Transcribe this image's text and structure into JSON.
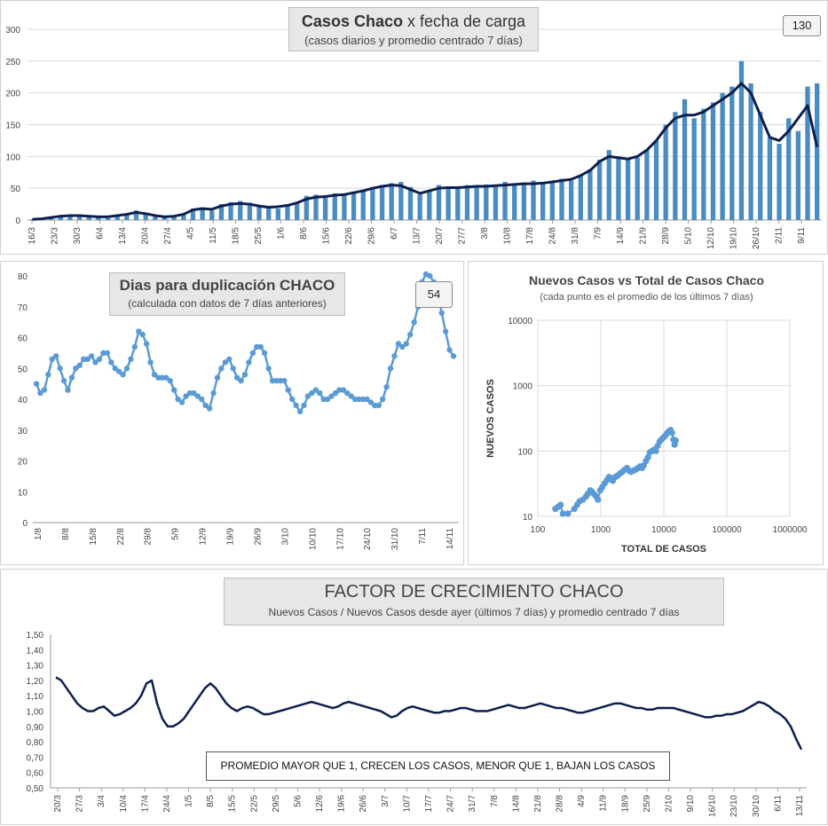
{
  "colors": {
    "navy": "#0d1f4f",
    "bar": "#4a8cc2",
    "light_line": "#5b9bd5",
    "grid": "#d9d9d9"
  },
  "chart_data": [
    {
      "id": "casos",
      "type": "bar",
      "title_bold": "Casos Chaco",
      "title_rest": "x fecha de carga",
      "subtitle": "(casos diarios y promedio  centrado 7 días)",
      "value_label": "130",
      "ylim": [
        0,
        300
      ],
      "yticks": [
        "0",
        "50",
        "100",
        "150",
        "200",
        "250",
        "300"
      ],
      "xticks": [
        "16/3",
        "23/3",
        "30/3",
        "6/4",
        "13/4",
        "20/4",
        "27/4",
        "4/5",
        "11/5",
        "18/5",
        "25/5",
        "1/6",
        "8/6",
        "15/6",
        "22/6",
        "29/6",
        "6/7",
        "13/7",
        "20/7",
        "27/7",
        "3/8",
        "10/8",
        "17/8",
        "24/8",
        "31/8",
        "7/9",
        "14/9",
        "21/9",
        "28/9",
        "5/10",
        "12/10",
        "19/10",
        "26/10",
        "2/11",
        "9/11"
      ],
      "series": [
        {
          "values": [
            1,
            2,
            5,
            8,
            8,
            8,
            5,
            4,
            3,
            6,
            9,
            15,
            10,
            5,
            4,
            6,
            8,
            18,
            20,
            15,
            25,
            28,
            30,
            27,
            22,
            20,
            18,
            24,
            28,
            38,
            40,
            35,
            42,
            40,
            45,
            48,
            52,
            55,
            58,
            60,
            52,
            40,
            45,
            55,
            52,
            50,
            55,
            52,
            56,
            55,
            60,
            55,
            58,
            62,
            57,
            60,
            65,
            62,
            70,
            80,
            95,
            110,
            100,
            95,
            98,
            110,
            125,
            150,
            170,
            190,
            160,
            175,
            185,
            200,
            210,
            250,
            215,
            170,
            130,
            120,
            160,
            140,
            210,
            215
          ]
        },
        {
          "values": [
            1,
            2,
            4,
            6,
            7,
            7,
            6,
            5,
            5,
            7,
            9,
            12,
            10,
            7,
            5,
            6,
            9,
            16,
            18,
            17,
            22,
            25,
            26,
            25,
            22,
            20,
            21,
            23,
            27,
            33,
            36,
            37,
            39,
            40,
            43,
            46,
            50,
            53,
            55,
            54,
            48,
            42,
            46,
            50,
            51,
            51,
            52,
            53,
            53,
            54,
            55,
            56,
            57,
            57,
            58,
            60,
            62,
            64,
            70,
            78,
            92,
            100,
            98,
            96,
            100,
            110,
            125,
            145,
            160,
            165,
            165,
            170,
            180,
            190,
            200,
            215,
            200,
            165,
            130,
            125,
            140,
            160,
            180,
            115
          ]
        }
      ]
    },
    {
      "id": "duplicacion",
      "type": "line",
      "title": "Dias para duplicación  CHACO",
      "subtitle": "(calculada con datos de 7 días anteriores)",
      "value_label": "54",
      "ylim": [
        0,
        80
      ],
      "yticks": [
        "0",
        "10",
        "20",
        "30",
        "40",
        "50",
        "60",
        "70",
        "80"
      ],
      "xticks": [
        "1/8",
        "8/8",
        "15/8",
        "22/8",
        "29/8",
        "5/9",
        "12/9",
        "19/9",
        "26/9",
        "3/10",
        "10/10",
        "17/10",
        "24/10",
        "31/10",
        "7/11",
        "14/11"
      ],
      "series": [
        {
          "values": [
            45,
            42,
            43,
            48,
            53,
            54,
            50,
            46,
            43,
            47,
            50,
            51,
            53,
            53,
            54,
            52,
            53,
            55,
            55,
            52,
            50,
            49,
            48,
            50,
            53,
            57,
            62,
            61,
            58,
            52,
            48,
            47,
            47,
            47,
            46,
            43,
            40,
            39,
            41,
            42,
            42,
            41,
            40,
            38,
            37,
            42,
            47,
            50,
            52,
            53,
            50,
            47,
            46,
            48,
            52,
            55,
            57,
            57,
            55,
            50,
            46,
            46,
            46,
            46,
            43,
            40,
            38,
            36,
            38,
            41,
            42,
            43,
            42,
            40,
            40,
            41,
            42,
            43,
            43,
            42,
            41,
            40,
            40,
            40,
            40,
            39,
            38,
            38,
            40,
            44,
            50,
            54,
            58,
            57,
            58,
            61,
            65,
            70,
            78,
            82,
            80,
            78,
            75,
            68,
            62,
            56,
            54
          ]
        }
      ]
    },
    {
      "id": "nuevos-vs-total",
      "type": "scatter",
      "title": "Nuevos Casos vs Total de Casos Chaco",
      "subtitle": "(cada punto es el promedio de los últimos 7 días)",
      "xlabel": "TOTAL DE CASOS",
      "ylabel": "NUEVOS CASOS",
      "xscale": "log",
      "yscale": "log",
      "xlim": [
        100,
        1000000
      ],
      "ylim": [
        10,
        10000
      ],
      "xticks": [
        "100",
        "1000",
        "10000",
        "100000",
        "1000000"
      ],
      "yticks": [
        "10",
        "100",
        "1000",
        "10000"
      ],
      "points": [
        [
          190,
          13
        ],
        [
          210,
          14
        ],
        [
          230,
          15
        ],
        [
          250,
          11
        ],
        [
          300,
          11
        ],
        [
          380,
          13
        ],
        [
          420,
          15
        ],
        [
          460,
          17
        ],
        [
          520,
          18
        ],
        [
          580,
          20
        ],
        [
          620,
          22
        ],
        [
          680,
          25
        ],
        [
          720,
          24
        ],
        [
          780,
          22
        ],
        [
          850,
          20
        ],
        [
          900,
          18
        ],
        [
          980,
          25
        ],
        [
          1050,
          28
        ],
        [
          1150,
          32
        ],
        [
          1250,
          36
        ],
        [
          1350,
          40
        ],
        [
          1450,
          38
        ],
        [
          1550,
          35
        ],
        [
          1700,
          40
        ],
        [
          1850,
          42
        ],
        [
          2000,
          45
        ],
        [
          2200,
          48
        ],
        [
          2400,
          52
        ],
        [
          2600,
          55
        ],
        [
          2800,
          50
        ],
        [
          3000,
          48
        ],
        [
          3300,
          50
        ],
        [
          3600,
          52
        ],
        [
          3900,
          55
        ],
        [
          4200,
          58
        ],
        [
          4500,
          55
        ],
        [
          4800,
          60
        ],
        [
          5200,
          70
        ],
        [
          5600,
          80
        ],
        [
          6000,
          95
        ],
        [
          6500,
          100
        ],
        [
          7000,
          105
        ],
        [
          7500,
          100
        ],
        [
          8000,
          120
        ],
        [
          8600,
          140
        ],
        [
          9200,
          150
        ],
        [
          9800,
          160
        ],
        [
          10500,
          170
        ],
        [
          11200,
          185
        ],
        [
          12000,
          200
        ],
        [
          12800,
          210
        ],
        [
          13500,
          190
        ],
        [
          14200,
          150
        ],
        [
          14800,
          125
        ],
        [
          15400,
          145
        ]
      ]
    },
    {
      "id": "factor",
      "type": "line",
      "title": "FACTOR DE CRECIMIENTO CHACO",
      "subtitle": "Nuevos Casos  / Nuevos Casos desde ayer (últimos 7 días) y promedio  centrado  7 días",
      "annotation": "PROMEDIO MAYOR QUE 1, CRECEN LOS CASOS, MENOR QUE 1, BAJAN LOS CASOS",
      "ylim": [
        0.5,
        1.5
      ],
      "yticks": [
        "0,50",
        "0,60",
        "0,70",
        "0,80",
        "0,90",
        "1,00",
        "1,10",
        "1,20",
        "1,30",
        "1,40",
        "1,50"
      ],
      "xticks": [
        "20/3",
        "27/3",
        "3/4",
        "10/4",
        "17/4",
        "24/4",
        "1/5",
        "8/5",
        "15/5",
        "22/5",
        "29/5",
        "5/6",
        "12/6",
        "19/6",
        "26/6",
        "3/7",
        "10/7",
        "17/7",
        "24/7",
        "31/7",
        "7/8",
        "14/8",
        "21/8",
        "28/8",
        "4/9",
        "11/9",
        "18/9",
        "25/9",
        "2/10",
        "9/10",
        "16/10",
        "23/10",
        "30/10",
        "6/11",
        "13/11"
      ],
      "series": [
        {
          "name": "",
          "values": [
            1.22,
            1.2,
            1.15,
            1.1,
            1.05,
            1.02,
            1.0,
            1.0,
            1.02,
            1.03,
            1.0,
            0.97,
            0.98,
            1.0,
            1.02,
            1.05,
            1.1,
            1.18,
            1.2,
            1.05,
            0.95,
            0.9,
            0.9,
            0.92,
            0.95,
            1.0,
            1.05,
            1.1,
            1.15,
            1.18,
            1.15,
            1.1,
            1.05,
            1.02,
            1.0,
            1.02,
            1.03,
            1.02,
            1.0,
            0.98,
            0.98,
            0.99,
            1.0,
            1.01,
            1.02,
            1.03,
            1.04,
            1.05,
            1.06,
            1.05,
            1.04,
            1.03,
            1.02,
            1.03,
            1.05,
            1.06,
            1.05,
            1.04,
            1.03,
            1.02,
            1.01,
            1.0,
            0.98,
            0.96,
            0.97,
            1.0,
            1.02,
            1.03,
            1.02,
            1.01,
            1.0,
            0.99,
            0.99,
            1.0,
            1.0,
            1.01,
            1.02,
            1.02,
            1.01,
            1.0,
            1.0,
            1.0,
            1.01,
            1.02,
            1.03,
            1.04,
            1.03,
            1.02,
            1.02,
            1.03,
            1.04,
            1.05,
            1.04,
            1.03,
            1.02,
            1.02,
            1.01,
            1.0,
            0.99,
            0.99,
            1.0,
            1.01,
            1.02,
            1.03,
            1.04,
            1.05,
            1.05,
            1.04,
            1.03,
            1.02,
            1.02,
            1.01,
            1.01,
            1.02,
            1.02,
            1.02,
            1.02,
            1.01,
            1.0,
            0.99,
            0.98,
            0.97,
            0.96,
            0.96,
            0.97,
            0.97,
            0.98,
            0.98,
            0.99,
            1.0,
            1.02,
            1.04,
            1.06,
            1.05,
            1.03,
            1.0,
            0.98,
            0.95,
            0.9,
            0.82,
            0.75
          ]
        }
      ]
    }
  ]
}
